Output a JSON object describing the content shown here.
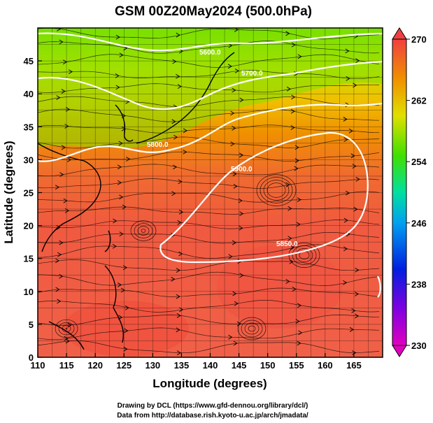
{
  "title": "GSM 00Z20May2024 (500.0hPa)",
  "xlabel": "Longitude (degrees)",
  "ylabel": "Latitude  (degrees)",
  "x_ticks": [
    "110",
    "115",
    "120",
    "125",
    "130",
    "135",
    "140",
    "145",
    "150",
    "155",
    "160",
    "165"
  ],
  "y_ticks": [
    "0",
    "5",
    "10",
    "15",
    "20",
    "25",
    "30",
    "35",
    "40",
    "45"
  ],
  "colorbar": {
    "ticks": [
      "230",
      "238",
      "246",
      "254",
      "262",
      "270"
    ],
    "min": 230,
    "max": 270
  },
  "contour_labels": [
    "5600.0",
    "5850.0",
    "5800.0",
    "5700.0",
    "5900.0"
  ],
  "credits": {
    "line1": "Drawing by DCL (https://www.gfd-dennou.org/library/dcl/)",
    "line2": "Data from http://database.rish.kyoto-u.ac.jp/arch/jmadata/"
  },
  "colors": {
    "warm": "#f06040",
    "mid": "#f0a000",
    "cool": "#40c020",
    "contour": "#ffffff",
    "streamline": "#000000"
  }
}
